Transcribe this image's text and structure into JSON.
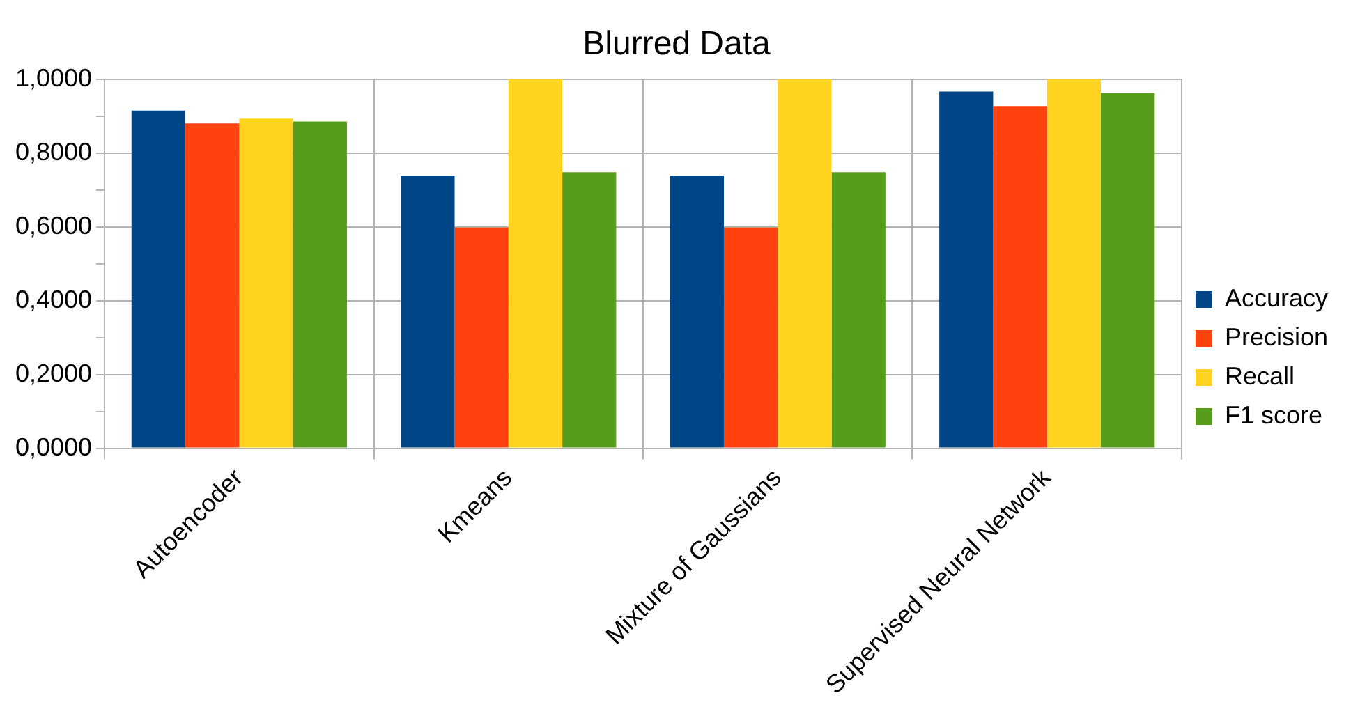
{
  "chart_data": {
    "type": "bar",
    "title": "Blurred Data",
    "categories": [
      "Autoencoder",
      "Kmeans",
      "Mixture of Gaussians",
      "Supervised Neural Network"
    ],
    "series": [
      {
        "name": "Accuracy",
        "color": "#004586",
        "values": [
          0.915,
          0.739,
          0.739,
          0.966
        ]
      },
      {
        "name": "Precision",
        "color": "#ff420e",
        "values": [
          0.88,
          0.598,
          0.598,
          0.927
        ]
      },
      {
        "name": "Recall",
        "color": "#ffd320",
        "values": [
          0.893,
          1.0,
          1.0,
          1.0
        ]
      },
      {
        "name": "F1 score",
        "color": "#579d1c",
        "values": [
          0.885,
          0.748,
          0.748,
          0.962
        ]
      }
    ],
    "ylim": [
      0,
      1
    ],
    "yticks": [
      {
        "value": 0,
        "label": "0,0000"
      },
      {
        "value": 0.1,
        "label": null
      },
      {
        "value": 0.2,
        "label": "0,2000"
      },
      {
        "value": 0.3,
        "label": null
      },
      {
        "value": 0.4,
        "label": "0,4000"
      },
      {
        "value": 0.5,
        "label": null
      },
      {
        "value": 0.6,
        "label": "0,6000"
      },
      {
        "value": 0.7,
        "label": null
      },
      {
        "value": 0.8,
        "label": "0,8000"
      },
      {
        "value": 0.9,
        "label": null
      },
      {
        "value": 1,
        "label": "1,0000"
      }
    ],
    "grid": true,
    "legend": "right"
  }
}
